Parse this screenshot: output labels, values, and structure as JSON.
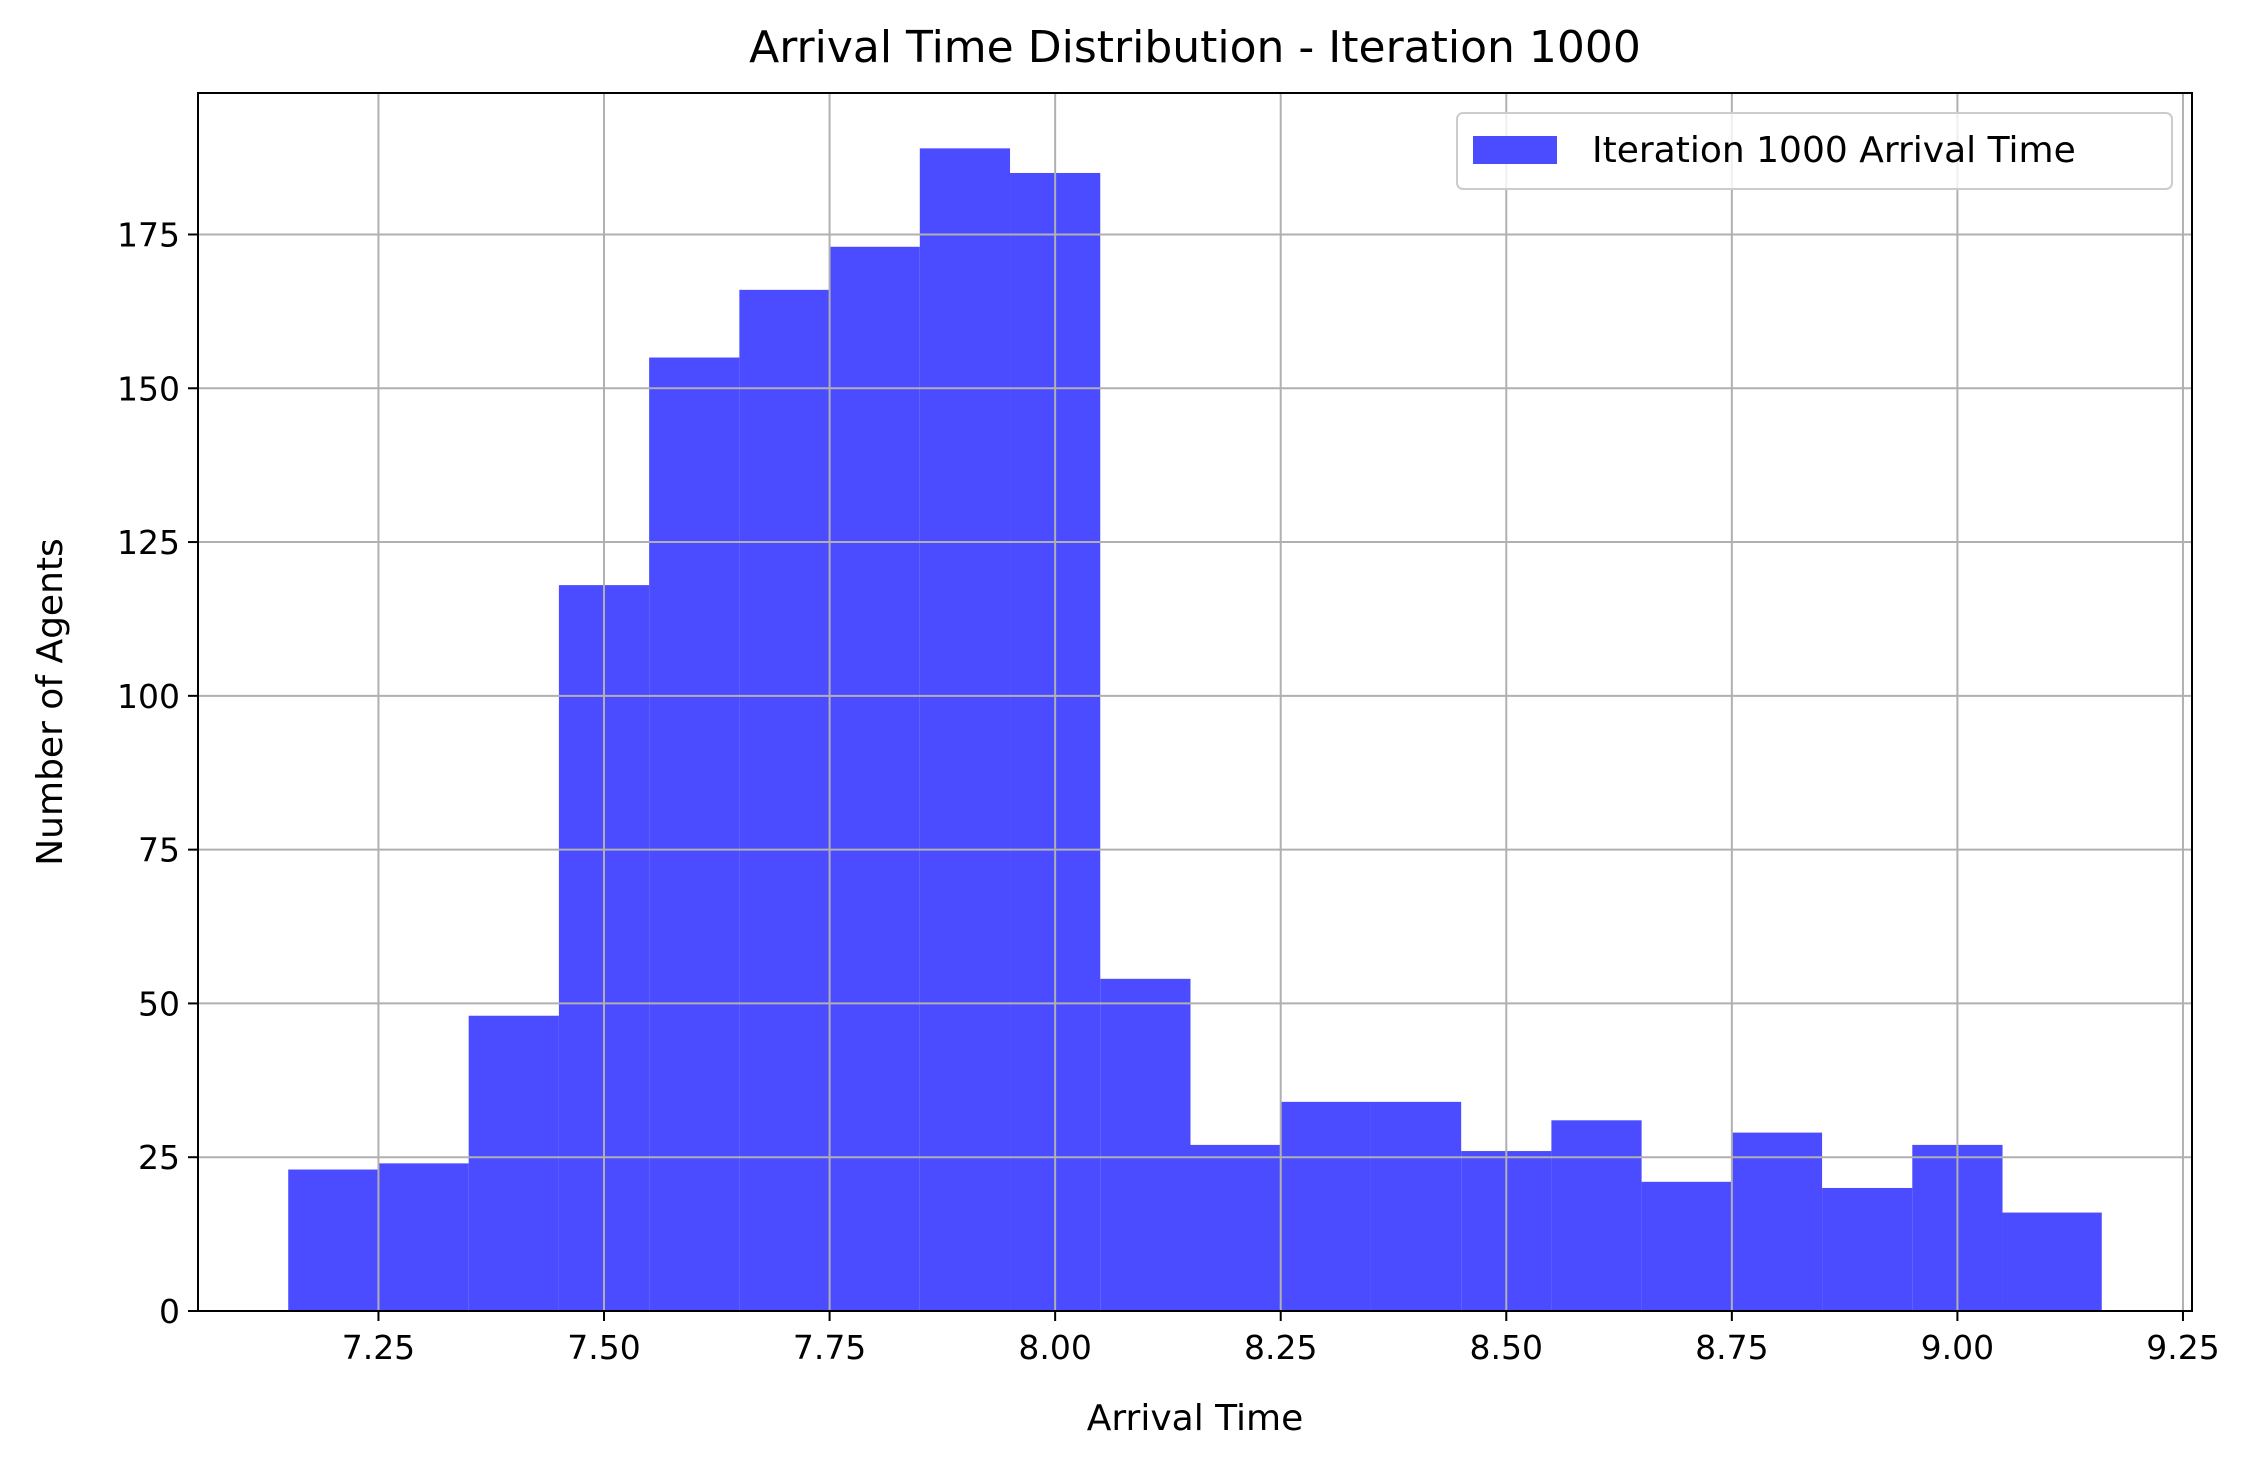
{
  "chart_data": {
    "type": "bar",
    "title": "Arrival Time Distribution - Iteration 1000",
    "xlabel": "Arrival Time",
    "ylabel": "Number of Agents",
    "xlim": [
      7.05,
      9.26
    ],
    "ylim": [
      0,
      198
    ],
    "x_ticks": [
      7.25,
      7.5,
      7.75,
      8.0,
      8.25,
      8.5,
      8.75,
      9.0,
      9.25
    ],
    "x_tick_labels": [
      "7.25",
      "7.50",
      "7.75",
      "8.00",
      "8.25",
      "8.50",
      "8.75",
      "9.00",
      "9.25"
    ],
    "y_ticks": [
      0,
      25,
      50,
      75,
      100,
      125,
      150,
      175
    ],
    "y_tick_labels": [
      "0",
      "25",
      "50",
      "75",
      "100",
      "125",
      "150",
      "175"
    ],
    "grid": true,
    "legend_position": "top-right",
    "bin_edges": [
      7.15,
      7.25,
      7.35,
      7.45,
      7.55,
      7.65,
      7.75,
      7.85,
      7.95,
      8.05,
      8.15,
      8.25,
      8.35,
      8.45,
      8.55,
      8.65,
      8.75,
      8.85,
      8.95,
      9.05,
      9.16
    ],
    "series": [
      {
        "name": "Iteration 1000 Arrival Time",
        "color": "#4b4bff",
        "values": [
          23,
          24,
          48,
          118,
          155,
          166,
          173,
          189,
          185,
          54,
          27,
          34,
          34,
          26,
          31,
          21,
          29,
          20,
          27,
          16
        ]
      }
    ]
  }
}
